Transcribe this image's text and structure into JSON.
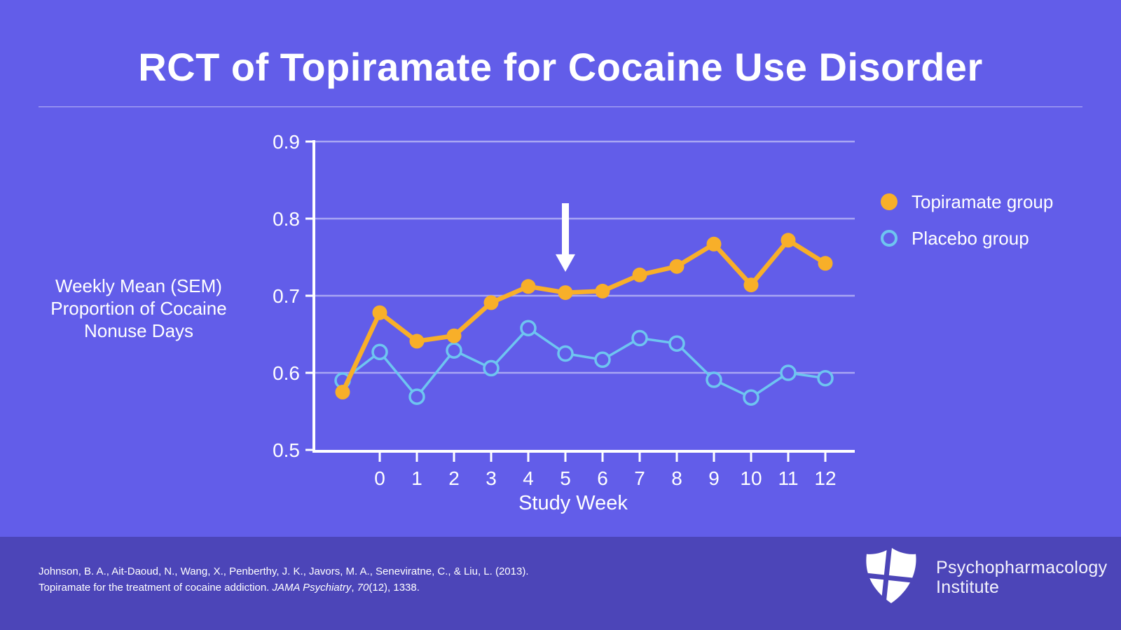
{
  "header": {
    "title": "RCT of Topiramate for Cocaine Use Disorder"
  },
  "y_axis_title": "Weekly Mean (SEM) Proportion of Cocaine Nonuse Days",
  "chart_data": {
    "type": "line",
    "title": "RCT of Topiramate for Cocaine Use Disorder",
    "xlabel": "Study Week",
    "ylabel": "Weekly Mean (SEM) Proportion of Cocaine Nonuse Days",
    "x": [
      -1,
      0,
      1,
      2,
      3,
      4,
      5,
      6,
      7,
      8,
      9,
      10,
      11,
      12
    ],
    "x_tick_labels": [
      "0",
      "1",
      "2",
      "3",
      "4",
      "5",
      "6",
      "7",
      "8",
      "9",
      "10",
      "11",
      "12"
    ],
    "ylim": [
      0.5,
      0.9
    ],
    "yticks": [
      0.5,
      0.6,
      0.7,
      0.8,
      0.9
    ],
    "ytick_labels": [
      "0.5",
      "0.6",
      "0.7",
      "0.8",
      "0.9"
    ],
    "grid": true,
    "legend_position": "right",
    "series": [
      {
        "name": "Topiramate group",
        "marker": "filled-circle",
        "color": "#F8AF29",
        "values": [
          0.575,
          0.678,
          0.641,
          0.648,
          0.691,
          0.712,
          0.704,
          0.706,
          0.727,
          0.738,
          0.767,
          0.714,
          0.772,
          0.742
        ]
      },
      {
        "name": "Placebo group",
        "marker": "open-circle",
        "color": "#6EC5F0",
        "values": [
          0.59,
          0.627,
          0.569,
          0.629,
          0.606,
          0.658,
          0.625,
          0.617,
          0.645,
          0.638,
          0.591,
          0.568,
          0.6,
          0.593
        ]
      }
    ],
    "annotations": [
      {
        "type": "down-arrow",
        "x": 5,
        "y_tail": 0.82,
        "y_tip": 0.731,
        "color": "#FFFFFF"
      }
    ]
  },
  "footer": {
    "citation_line1": "Johnson, B. A., Ait-Daoud, N., Wang, X., Penberthy, J. K., Javors, M. A., Seneviratne, C., & Liu, L. (2013).",
    "citation_line2_pre": "Topiramate for the treatment of cocaine addiction. ",
    "citation_journal": "JAMA Psychiatry",
    "citation_sep": ", ",
    "citation_volume": "70",
    "citation_line2_post": "(12), 1338.",
    "brand_line1": "Psychopharmacology",
    "brand_line2": "Institute"
  },
  "colors": {
    "background": "#625DE9",
    "footer_background": "#4C45B8",
    "topiramate": "#F8AF29",
    "placebo": "#6EC5F0",
    "axis": "#FFFFFF",
    "gridline": "rgba(255,255,255,0.45)"
  }
}
